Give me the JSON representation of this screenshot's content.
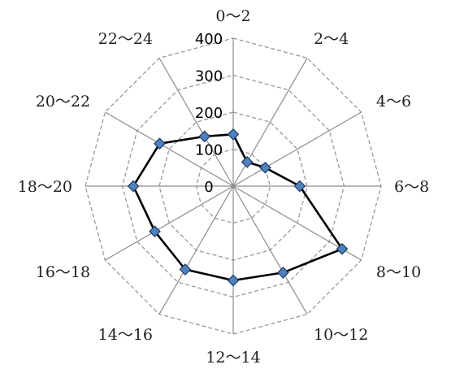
{
  "chart_data": {
    "type": "radar",
    "categories": [
      "0～2",
      "2～4",
      "4～6",
      "6～8",
      "8～10",
      "10～12",
      "12～14",
      "14～16",
      "16～18",
      "18～20",
      "20～22",
      "22～24"
    ],
    "series": [
      {
        "values": [
          140,
          75,
          100,
          180,
          340,
          270,
          255,
          260,
          245,
          270,
          230,
          155
        ]
      }
    ],
    "rlim": [
      0,
      400
    ],
    "ticks": [
      "0",
      "100",
      "200",
      "300",
      "400"
    ],
    "tick_values": [
      0,
      100,
      200,
      300,
      400
    ],
    "grid": true,
    "colors": {
      "line": "#000000",
      "marker": "#4f81bd",
      "marker_edge": "#1f3864",
      "grid": "#999999",
      "spoke": "#8c8c8c"
    }
  }
}
